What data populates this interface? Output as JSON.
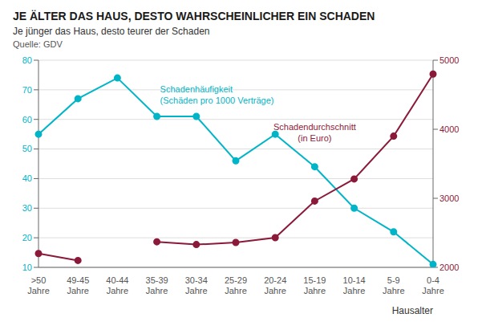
{
  "chart_data": {
    "type": "line",
    "title": "JE ÄLTER DAS HAUS, DESTO WAHRSCHEINLICHER EIN SCHADEN",
    "subtitle": "Je jünger das Haus, desto teurer der Schaden",
    "source": "Quelle: GDV",
    "x_label": "Hausalter",
    "categories": [
      ">50\nJahre",
      "49-45\nJahre",
      "40-44\nJahre",
      "35-39\nJahre",
      "30-34\nJahre",
      "25-29\nJahre",
      "20-24\nJahre",
      "15-19\nJahre",
      "10-14\nJahre",
      "5-9\nJahre",
      "0-4\nJahre"
    ],
    "series": [
      {
        "name": "Schadenhäufigkeit\n(Schäden pro 1000 Verträge)",
        "color": "#00B5C8",
        "marker": "circle",
        "values": [
          55,
          67,
          74,
          61,
          61,
          46,
          55,
          44,
          30,
          22,
          11
        ]
      },
      {
        "name": "Schadendurchschnitt\n(in Euro)",
        "color": "#8B1A3A",
        "marker": "circle",
        "axis": "y2",
        "values": [
          2200,
          2100,
          null,
          2370,
          2330,
          2360,
          2430,
          2960,
          3280,
          3900,
          4800
        ]
      }
    ],
    "ylim": [
      10,
      80
    ],
    "yticks": [
      10,
      20,
      30,
      40,
      50,
      60,
      70,
      80
    ],
    "y2lim": [
      2000,
      5000
    ],
    "y2ticks": [
      2000,
      3000,
      4000,
      5000
    ],
    "grid": true
  }
}
